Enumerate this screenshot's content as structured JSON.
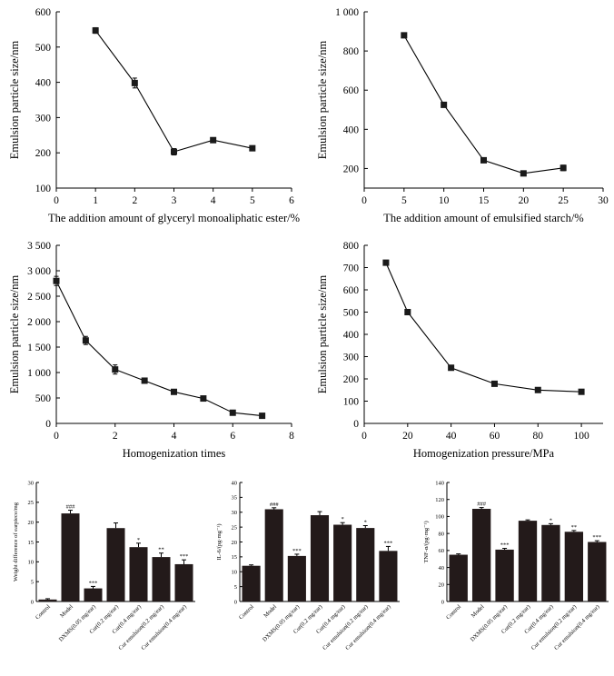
{
  "chart_data": [
    {
      "type": "line",
      "title": "",
      "xlabel": "The addition amount of glyceryl monoaliphatic ester/%",
      "ylabel": "Emulsion particle size/nm",
      "xlim": [
        0,
        6
      ],
      "ylim": [
        100,
        600
      ],
      "xticks": [
        0,
        1,
        2,
        3,
        4,
        5,
        6
      ],
      "yticks": [
        100,
        200,
        300,
        400,
        500,
        600
      ],
      "xtick_labels": [
        "0",
        "1",
        "2",
        "3",
        "4",
        "5",
        "6"
      ],
      "ytick_labels": [
        "100",
        "200",
        "300",
        "400",
        "500",
        "600"
      ],
      "x": [
        1,
        2,
        3,
        4,
        5
      ],
      "y": [
        547,
        398,
        203,
        236,
        213
      ],
      "err": [
        8,
        14,
        9,
        6,
        6
      ],
      "grid": false
    },
    {
      "type": "line",
      "title": "",
      "xlabel": "The addition amount of emulsified starch/%",
      "ylabel": "Emulsion particle size/nm",
      "xlim": [
        0,
        30
      ],
      "ylim": [
        100,
        1000
      ],
      "xticks": [
        0,
        5,
        10,
        15,
        20,
        25,
        30
      ],
      "yticks": [
        200,
        400,
        600,
        800,
        1000
      ],
      "xtick_labels": [
        "0",
        "5",
        "10",
        "15",
        "20",
        "25",
        "30"
      ],
      "ytick_labels": [
        "200",
        "400",
        "600",
        "800",
        "1 000"
      ],
      "x": [
        5,
        10,
        15,
        20,
        25
      ],
      "y": [
        880,
        525,
        242,
        175,
        203
      ],
      "err": [
        8,
        10,
        8,
        8,
        14
      ],
      "grid": false
    },
    {
      "type": "line",
      "title": "",
      "xlabel": "Homogenization times",
      "ylabel": "Emulsion particle size/nm",
      "xlim": [
        0,
        8
      ],
      "ylim": [
        0,
        3500
      ],
      "xticks": [
        0,
        2,
        4,
        6,
        8
      ],
      "yticks": [
        0,
        500,
        1000,
        1500,
        2000,
        2500,
        3000,
        3500
      ],
      "xtick_labels": [
        "0",
        "2",
        "4",
        "6",
        "8"
      ],
      "ytick_labels": [
        "0",
        "500",
        "1 000",
        "1 500",
        "2 000",
        "2 500",
        "3 000",
        "3 500"
      ],
      "x": [
        0,
        1,
        2,
        3,
        4,
        5,
        6,
        7
      ],
      "y": [
        2800,
        1630,
        1060,
        840,
        620,
        490,
        210,
        150
      ],
      "err": [
        90,
        80,
        90,
        40,
        30,
        30,
        40,
        30
      ],
      "grid": false
    },
    {
      "type": "line",
      "title": "",
      "xlabel": "Homogenization pressure/MPa",
      "ylabel": "Emulsion particle size/nm",
      "xlim": [
        0,
        110
      ],
      "ylim": [
        0,
        800
      ],
      "xticks": [
        0,
        20,
        40,
        60,
        80,
        100
      ],
      "yticks": [
        0,
        100,
        200,
        300,
        400,
        500,
        600,
        700,
        800
      ],
      "xtick_labels": [
        "0",
        "20",
        "40",
        "60",
        "80",
        "100"
      ],
      "ytick_labels": [
        "0",
        "100",
        "200",
        "300",
        "400",
        "500",
        "600",
        "700",
        "800"
      ],
      "x": [
        10,
        20,
        40,
        60,
        80,
        100
      ],
      "y": [
        722,
        500,
        250,
        178,
        150,
        142
      ],
      "err": [
        6,
        12,
        8,
        5,
        5,
        5
      ],
      "grid": false
    },
    {
      "type": "bar",
      "title": "",
      "xlabel": "",
      "ylabel": "Weight difference of earpiece/mg",
      "ylim": [
        0,
        30
      ],
      "yticks": [
        0,
        5,
        10,
        15,
        20,
        25,
        30
      ],
      "ytick_labels": [
        "0",
        "5",
        "10",
        "15",
        "20",
        "25",
        "30"
      ],
      "categories": [
        "Control",
        "Model",
        "DXMS(0.05 mg/ear)",
        "Cur(0.2 mg/ear)",
        "Cur(0.4 mg/ear)",
        "Cur emulsion(0.2 mg/ear)",
        "Cur emulsion(0.4 mg/ear)"
      ],
      "values": [
        0.5,
        22.2,
        3.3,
        18.5,
        13.7,
        11.2,
        9.4
      ],
      "err": [
        0.2,
        0.8,
        0.5,
        1.3,
        1.0,
        1.0,
        1.1
      ],
      "annotations": [
        "",
        "###",
        "***",
        "",
        "*",
        "**",
        "***"
      ],
      "grid": false
    },
    {
      "type": "bar",
      "title": "",
      "xlabel": "",
      "ylabel": "IL-6/(pg·mg⁻¹)",
      "ylim": [
        0,
        40
      ],
      "yticks": [
        0,
        5,
        10,
        15,
        20,
        25,
        30,
        35,
        40
      ],
      "ytick_labels": [
        "0",
        "5",
        "10",
        "15",
        "20",
        "25",
        "30",
        "35",
        "40"
      ],
      "categories": [
        "Control",
        "Model",
        "DXMS(0.05 mg/ear)",
        "Cur(0.2 mg/ear)",
        "Cur(0.4 mg/ear)",
        "Cur emulsion(0.2 mg/ear)",
        "Cur emulsion(0.4 mg/ear)"
      ],
      "values": [
        12.0,
        31.0,
        15.3,
        29.0,
        25.8,
        24.7,
        17.0
      ],
      "err": [
        0.3,
        0.5,
        0.6,
        1.2,
        0.7,
        0.8,
        1.5
      ],
      "annotations": [
        "",
        "###",
        "***",
        "",
        "*",
        "*",
        "***"
      ],
      "grid": false
    },
    {
      "type": "bar",
      "title": "",
      "xlabel": "",
      "ylabel": "TNF-α/(pg·mg⁻¹)",
      "ylim": [
        0,
        140
      ],
      "yticks": [
        0,
        20,
        40,
        60,
        80,
        100,
        120,
        140
      ],
      "ytick_labels": [
        "0",
        "20",
        "40",
        "60",
        "80",
        "100",
        "120",
        "140"
      ],
      "categories": [
        "Control",
        "Model",
        "DXMS(0.05 mg/ear)",
        "Cur(0.2 mg/ear)",
        "Cur(0.4 mg/ear)",
        "Cur emulsion(0.2 mg/ear)",
        "Cur emulsion(0.4 mg/ear)"
      ],
      "values": [
        55,
        109,
        61,
        95,
        90,
        82,
        70
      ],
      "err": [
        1,
        1.5,
        1.5,
        1,
        1.5,
        1.5,
        1.5
      ],
      "annotations": [
        "",
        "###",
        "***",
        "",
        "*",
        "**",
        "***"
      ],
      "grid": false
    }
  ]
}
